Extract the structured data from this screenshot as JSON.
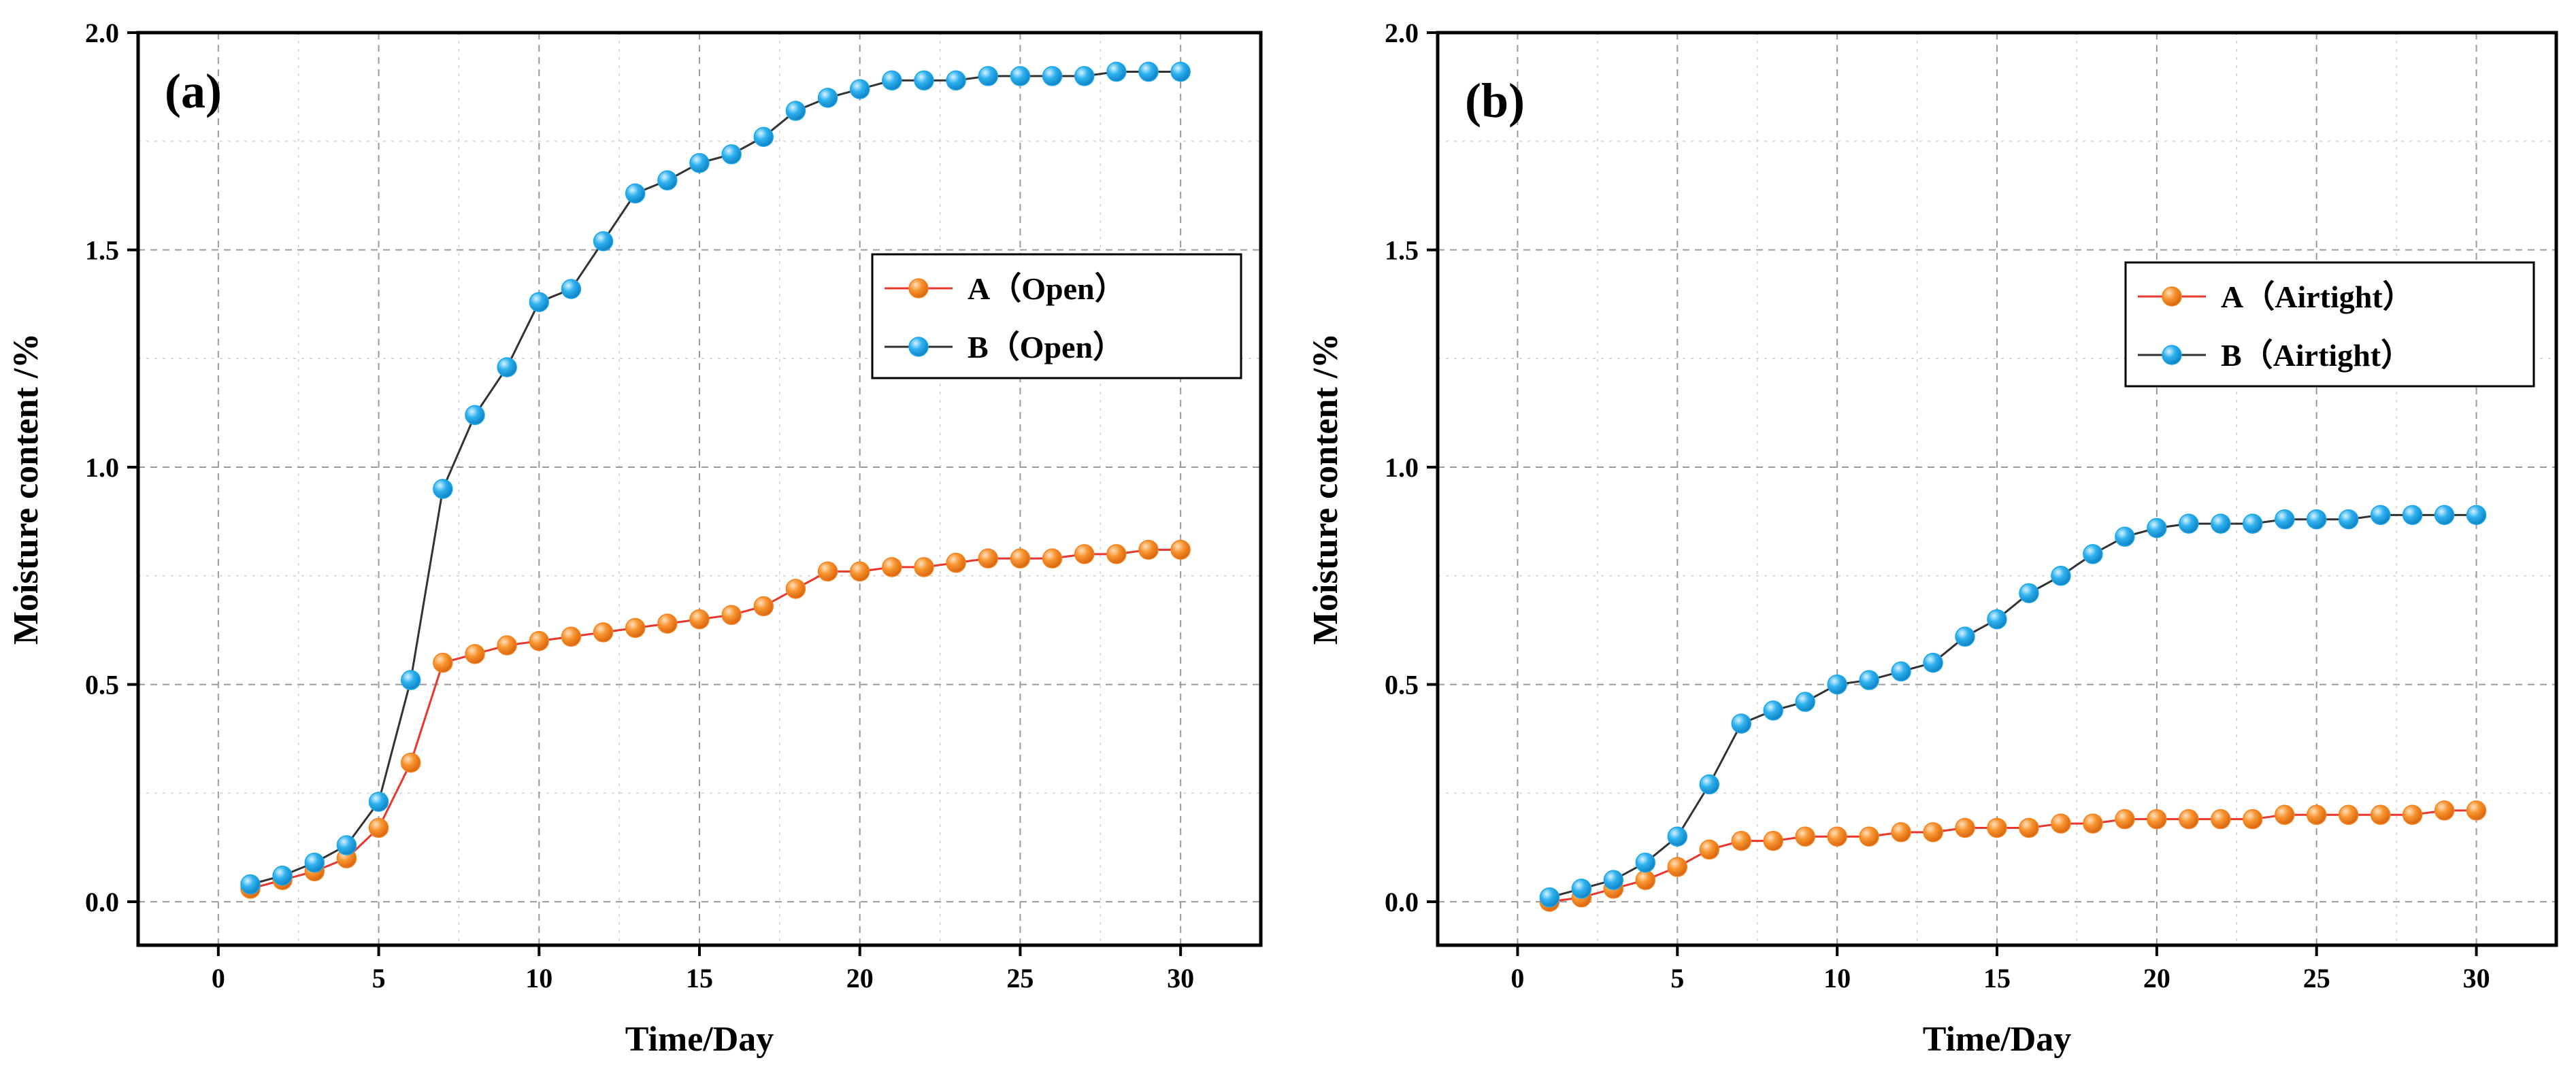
{
  "colors": {
    "series_A_marker": "#f58220",
    "series_A_line": "#e8372c",
    "series_B_marker": "#1ea7e8",
    "series_B_line": "#333333",
    "marker_highlight": "#ffffff"
  },
  "chart_data": [
    {
      "type": "line",
      "panel_label": "(a)",
      "title": "",
      "xlabel": "Time/Day",
      "ylabel": "Moisture content /%",
      "xlim": [
        -2.5,
        32.5
      ],
      "ylim": [
        -0.1,
        2.0
      ],
      "x_ticks": [
        0,
        5,
        10,
        15,
        20,
        25,
        30
      ],
      "x_tick_labels": [
        "0",
        "5",
        "10",
        "15",
        "20",
        "25",
        "30"
      ],
      "y_ticks": [
        0.0,
        0.5,
        1.0,
        1.5,
        2.0
      ],
      "y_tick_labels": [
        "0.0",
        "0.5",
        "1.0",
        "1.5",
        "2.0"
      ],
      "grid": true,
      "legend_position": "middle-right",
      "x": [
        1,
        2,
        3,
        4,
        5,
        6,
        7,
        8,
        9,
        10,
        11,
        12,
        13,
        14,
        15,
        16,
        17,
        18,
        19,
        20,
        21,
        22,
        23,
        24,
        25,
        26,
        27,
        28,
        29,
        30
      ],
      "series": [
        {
          "name": "A（Open）",
          "legend_label": "A（Open）",
          "marker_color": "#f58220",
          "line_color": "#e8372c",
          "values": [
            0.03,
            0.05,
            0.07,
            0.1,
            0.17,
            0.32,
            0.55,
            0.57,
            0.59,
            0.6,
            0.61,
            0.62,
            0.63,
            0.64,
            0.65,
            0.66,
            0.68,
            0.72,
            0.76,
            0.76,
            0.77,
            0.77,
            0.78,
            0.79,
            0.79,
            0.79,
            0.8,
            0.8,
            0.81,
            0.81
          ]
        },
        {
          "name": "B（Open）",
          "legend_label": "B（Open）",
          "marker_color": "#1ea7e8",
          "line_color": "#333333",
          "values": [
            0.04,
            0.06,
            0.09,
            0.13,
            0.23,
            0.51,
            0.95,
            1.12,
            1.23,
            1.38,
            1.41,
            1.52,
            1.63,
            1.66,
            1.7,
            1.72,
            1.76,
            1.82,
            1.85,
            1.87,
            1.89,
            1.89,
            1.89,
            1.9,
            1.9,
            1.9,
            1.9,
            1.91,
            1.91,
            1.91
          ]
        }
      ]
    },
    {
      "type": "line",
      "panel_label": "(b)",
      "title": "",
      "xlabel": "Time/Day",
      "ylabel": "Moisture content /%",
      "xlim": [
        -2.5,
        32.5
      ],
      "ylim": [
        -0.1,
        2.0
      ],
      "x_ticks": [
        0,
        5,
        10,
        15,
        20,
        25,
        30
      ],
      "x_tick_labels": [
        "0",
        "5",
        "10",
        "15",
        "20",
        "25",
        "30"
      ],
      "y_ticks": [
        0.0,
        0.5,
        1.0,
        1.5,
        2.0
      ],
      "y_tick_labels": [
        "0.0",
        "0.5",
        "1.0",
        "1.5",
        "2.0"
      ],
      "grid": true,
      "legend_position": "upper-right",
      "x": [
        1,
        2,
        3,
        4,
        5,
        6,
        7,
        8,
        9,
        10,
        11,
        12,
        13,
        14,
        15,
        16,
        17,
        18,
        19,
        20,
        21,
        22,
        23,
        24,
        25,
        26,
        27,
        28,
        29,
        30
      ],
      "series": [
        {
          "name": "A（Airtight）",
          "legend_label": "A（Airtight）",
          "marker_color": "#f58220",
          "line_color": "#e8372c",
          "values": [
            0.0,
            0.01,
            0.03,
            0.05,
            0.08,
            0.12,
            0.14,
            0.14,
            0.15,
            0.15,
            0.15,
            0.16,
            0.16,
            0.17,
            0.17,
            0.17,
            0.18,
            0.18,
            0.19,
            0.19,
            0.19,
            0.19,
            0.19,
            0.2,
            0.2,
            0.2,
            0.2,
            0.2,
            0.21,
            0.21
          ]
        },
        {
          "name": "B（Airtight）",
          "legend_label": "B（Airtight）",
          "marker_color": "#1ea7e8",
          "line_color": "#333333",
          "values": [
            0.01,
            0.03,
            0.05,
            0.09,
            0.15,
            0.27,
            0.41,
            0.44,
            0.46,
            0.5,
            0.51,
            0.53,
            0.55,
            0.61,
            0.65,
            0.71,
            0.75,
            0.8,
            0.84,
            0.86,
            0.87,
            0.87,
            0.87,
            0.88,
            0.88,
            0.88,
            0.89,
            0.89,
            0.89,
            0.89
          ]
        }
      ]
    }
  ]
}
